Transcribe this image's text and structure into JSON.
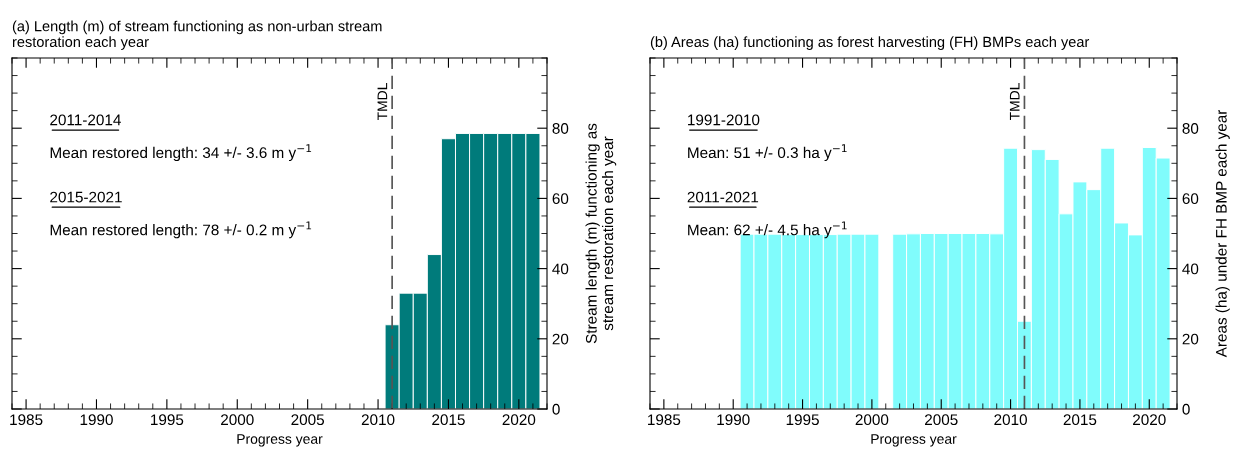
{
  "chart_data": [
    {
      "type": "bar",
      "title": "(a) Length (m) of stream functioning as non-urban stream\nrestoration each year",
      "xlabel": "Progress year",
      "ylabel": "Stream length (m) functioning as\nstream restoration each year",
      "x": [
        2011,
        2012,
        2013,
        2014,
        2015,
        2016,
        2017,
        2018,
        2019,
        2020,
        2021
      ],
      "series": [
        {
          "color": "#007b7b",
          "values": [
            24,
            33,
            33,
            44,
            77,
            78.5,
            78.5,
            78.5,
            78.5,
            78.5,
            78.5
          ]
        }
      ],
      "xlim": [
        1984,
        2022
      ],
      "xticks": [
        1985,
        1990,
        1995,
        2000,
        2005,
        2010,
        2015,
        2020
      ],
      "ylim": [
        0,
        100
      ],
      "yticks": [
        0,
        20,
        40,
        60,
        80
      ],
      "ref_lines": [
        {
          "axis": "x",
          "value": 2011,
          "label": "TMDL",
          "color": "#555555",
          "line_style": "dashed"
        }
      ],
      "annotations": [
        "2011-2014",
        "Mean restored length: 34 +/- 3.6 m y$^{−1}$",
        "2015-2021",
        "Mean restored length: 78 +/- 0.2 m y$^{−1}$"
      ],
      "grid": false,
      "legend": false
    },
    {
      "type": "bar",
      "title": "(b) Areas (ha) functioning as forest harvesting (FH) BMPs each year",
      "xlabel": "Progress year",
      "ylabel": "Areas (ha) under FH BMP each year",
      "x": [
        1991,
        1992,
        1993,
        1994,
        1995,
        1996,
        1997,
        1998,
        1999,
        2000,
        2001,
        2002,
        2003,
        2004,
        2005,
        2006,
        2007,
        2008,
        2009,
        2010,
        2011,
        2012,
        2013,
        2014,
        2015,
        2016,
        2017,
        2018,
        2019,
        2020,
        2021
      ],
      "series": [
        {
          "color": "#80fcfc",
          "values": [
            49.8,
            49.8,
            49.8,
            49.7,
            49.7,
            49.7,
            49.7,
            49.8,
            49.8,
            49.8,
            null,
            49.8,
            49.9,
            50,
            50,
            50,
            50,
            50,
            49.9,
            74.3,
            25,
            73.9,
            71.1,
            55.6,
            64.7,
            62.5,
            74.3,
            53,
            49.6,
            74.5,
            71.5
          ]
        }
      ],
      "xlim": [
        1984,
        2022
      ],
      "xticks": [
        1985,
        1990,
        1995,
        2000,
        2005,
        2010,
        2015,
        2020
      ],
      "ylim": [
        0,
        100
      ],
      "yticks": [
        0,
        20,
        40,
        60,
        80
      ],
      "ref_lines": [
        {
          "axis": "x",
          "value": 2011,
          "label": "TMDL",
          "color": "#555555",
          "line_style": "dashed"
        }
      ],
      "annotations": [
        "1991-2010",
        "Mean: 51 +/- 0.3 ha y$^{−1}$",
        "2011-2021",
        "Mean: 62 +/- 4.5 ha y$^{−1}$"
      ],
      "grid": false,
      "legend": false
    }
  ]
}
